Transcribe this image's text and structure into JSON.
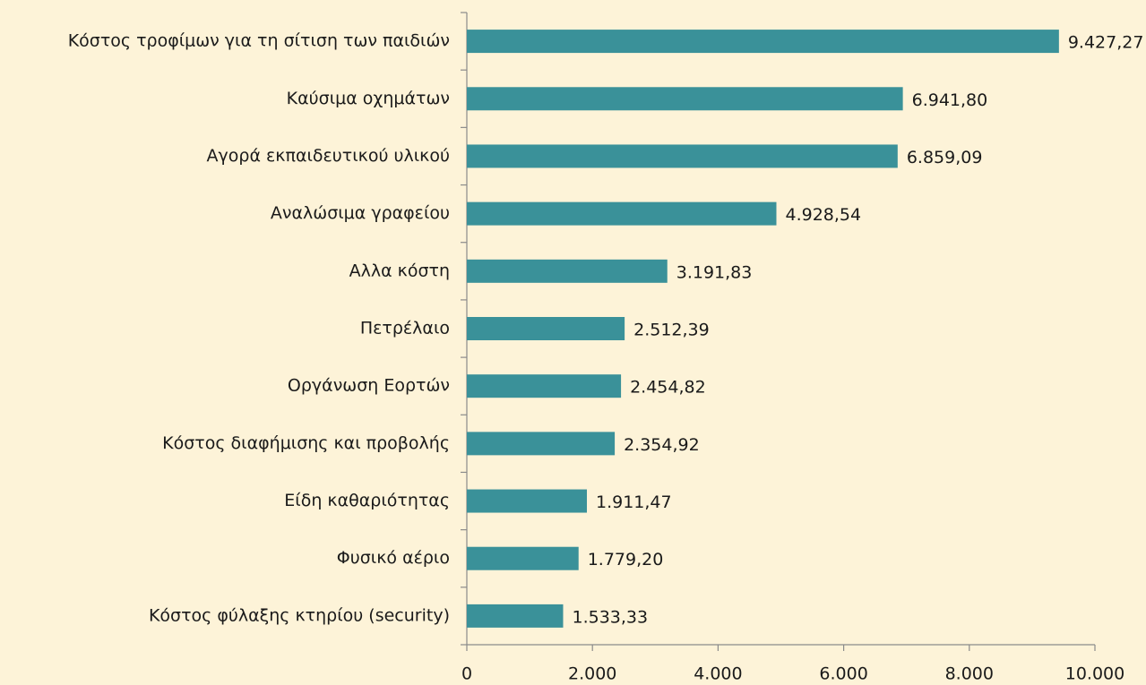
{
  "chart_data": {
    "type": "bar",
    "orientation": "horizontal",
    "color": "#3a9199",
    "background": "#fdf3d8",
    "categories": [
      "Κόστος τροφίμων για τη σίτιση των παιδιών",
      "Καύσιμα οχημάτων",
      "Αγορά εκπαιδευτικού υλικού",
      "Αναλώσιμα γραφείου",
      "Αλλα κόστη",
      "Πετρέλαιο",
      "Οργάνωση Εορτών",
      "Κόστος διαφήμισης και προβολής",
      "Είδη καθαριότητας",
      "Φυσικό αέριο",
      "Κόστος φύλαξης κτηρίου (security)"
    ],
    "values": [
      9427.27,
      6941.8,
      6859.09,
      4928.54,
      3191.83,
      2512.39,
      2454.82,
      2354.92,
      1911.47,
      1779.2,
      1533.33
    ],
    "value_labels": [
      "9.427,27",
      "6.941,80",
      "6.859,09",
      "4.928,54",
      "3.191,83",
      "2.512,39",
      "2.454,82",
      "2.354,92",
      "1.911,47",
      "1.779,20",
      "1.533,33"
    ],
    "xlim": [
      0,
      10000
    ],
    "xticks": [
      0,
      {
        "value": 2000,
        "label": "2.000"
      },
      {
        "value": 4000,
        "label": "4.000"
      },
      {
        "value": 6000,
        "label": "6.000"
      },
      {
        "value": 8000,
        "label": "8.000"
      },
      {
        "value": 10000,
        "label": "10.000"
      }
    ]
  }
}
